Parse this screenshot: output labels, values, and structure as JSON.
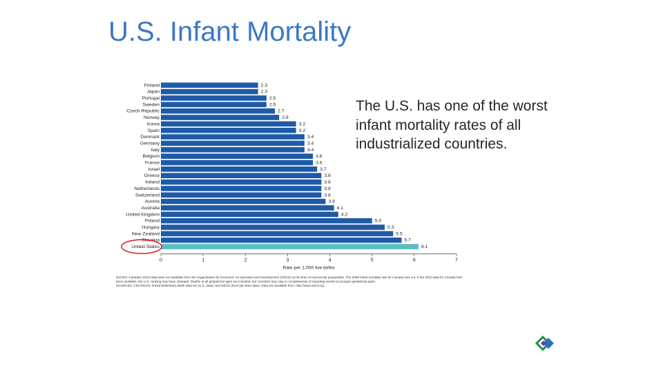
{
  "slide": {
    "title": "U.S. Infant Mortality"
  },
  "callout": "The U.S. has one of the worst infant mortality rates of all industrialized countries.",
  "notes": {
    "line1": "NOTES: Canada's 2010 data were not available from the Organisation for Economic Co-operation and Development (OECD) at the time of manuscript preparation. The 2009 infant mortality rate for Canada was 4.9. If the 2010 data for Canada had been available, the U.S. ranking may have changed. Deaths at all gestational ages are included, but countries may vary in completeness of reporting events at younger gestational ages.",
    "line2": "SOURCES: CDC/NCHS, linked birth/infant death data set (U.S. data); and OECD 2014 (all other data). Data are available from: http://www.oecd.org."
  },
  "colors": {
    "title": "#3a78c3",
    "bar": "#1e5aa8",
    "highlight_bar": "#5bbcc5",
    "circle": "#d9262a",
    "logo_green": "#1e8c4a",
    "logo_blue": "#2a6fc4",
    "logo_purple": "#6a3a9c"
  },
  "logo": {
    "icon": "diamond-logo-icon"
  },
  "chart_data": {
    "type": "bar",
    "orientation": "horizontal",
    "categories": [
      "Finland",
      "Japan",
      "Portugal",
      "Sweden",
      "Czech Republic",
      "Norway",
      "Korea",
      "Spain",
      "Denmark",
      "Germany",
      "Italy",
      "Belgium",
      "France",
      "Israel",
      "Greece",
      "Ireland",
      "Netherlands",
      "Switzerland",
      "Austria",
      "Australia",
      "United Kingdom",
      "Poland",
      "Hungary",
      "New Zealand",
      "Slovakia",
      "United States"
    ],
    "values": [
      2.3,
      2.3,
      2.5,
      2.5,
      2.7,
      2.8,
      3.2,
      3.2,
      3.4,
      3.4,
      3.4,
      3.6,
      3.6,
      3.7,
      3.8,
      3.8,
      3.8,
      3.8,
      3.9,
      4.1,
      4.2,
      5.0,
      5.3,
      5.5,
      5.7,
      6.1
    ],
    "value_labels": [
      "2.3",
      "2.3",
      "2.5",
      "2.5",
      "2.7",
      "2.8",
      "3.2",
      "3.2",
      "3.4",
      "3.4",
      "3.4",
      "3.6",
      "3.6",
      "3.7",
      "3.8",
      "3.8",
      "3.8",
      "3.8",
      "3.9",
      "4.1",
      "4.2",
      "5.0",
      "5.3",
      "5.5",
      "5.7",
      "6.1"
    ],
    "highlight": "United States",
    "xlim": [
      0,
      7
    ],
    "xticks": [
      "0",
      "1",
      "2",
      "3",
      "4",
      "5",
      "6",
      "7"
    ],
    "xlabel": "Rate per 1,000 live births",
    "ylabel": "",
    "grid": false
  }
}
